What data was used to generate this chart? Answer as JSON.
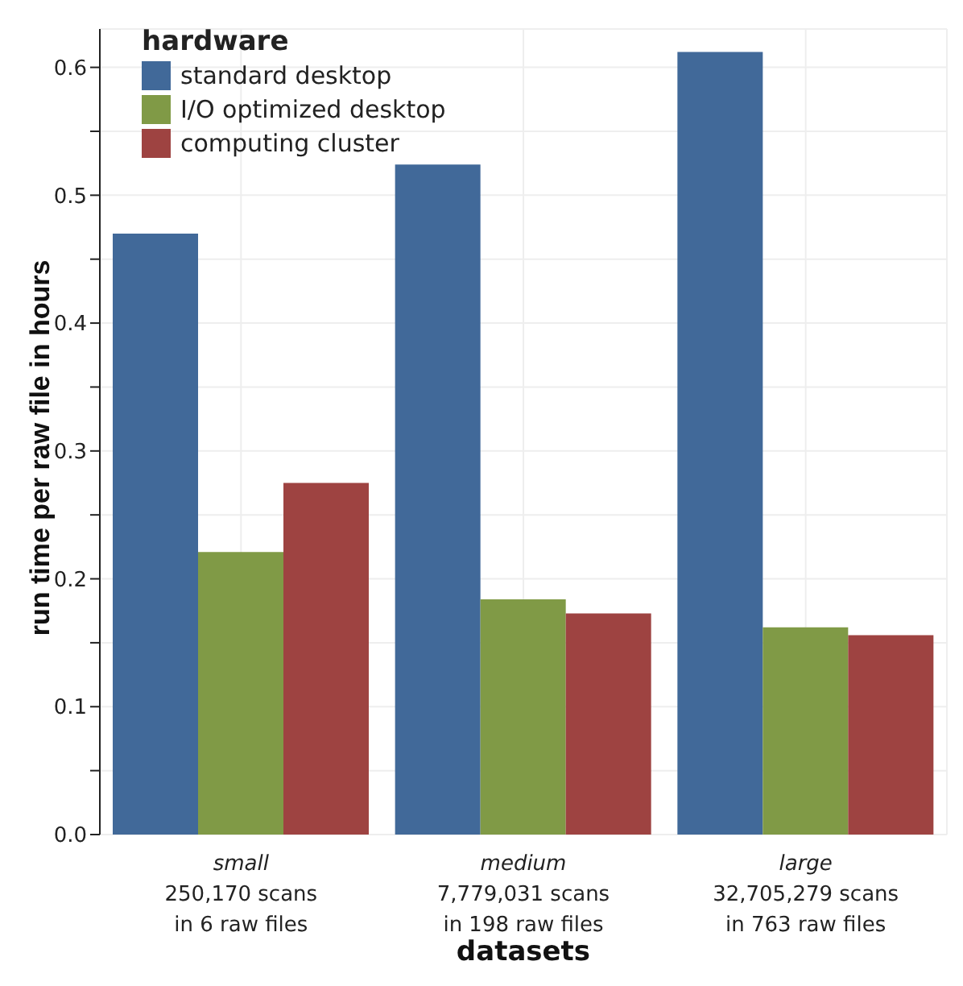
{
  "chart_data": {
    "type": "bar",
    "xlabel": "datasets",
    "ylabel": "run time per raw file in hours",
    "legend_title": "hardware",
    "legend": "top left",
    "grid": true,
    "categories": [
      "small\n250,170 scans\nin 6 raw files",
      "medium\n7,779,031 scans\nin 198 raw files",
      "large\n32,705,279 scans\nin 763 raw files"
    ],
    "series": [
      {
        "name": "standard desktop",
        "color": "#416999",
        "values": [
          0.47,
          0.524,
          0.612
        ]
      },
      {
        "name": "I/O optimized desktop",
        "color": "#809a46",
        "values": [
          0.221,
          0.184,
          0.162
        ]
      },
      {
        "name": "computing cluster",
        "color": "#9e4341",
        "values": [
          0.275,
          0.173,
          0.156
        ]
      }
    ],
    "ylim": [
      0,
      0.63
    ],
    "yticks": [
      {
        "value": 0,
        "label": "0.0"
      },
      {
        "value": 0.05,
        "label": null
      },
      {
        "value": 0.1,
        "label": "0.1"
      },
      {
        "value": 0.15,
        "label": null
      },
      {
        "value": 0.2,
        "label": "0.2"
      },
      {
        "value": 0.25,
        "label": null
      },
      {
        "value": 0.3,
        "label": "0.3"
      },
      {
        "value": 0.35,
        "label": null
      },
      {
        "value": 0.4,
        "label": "0.4"
      },
      {
        "value": 0.45,
        "label": null
      },
      {
        "value": 0.5,
        "label": "0.5"
      },
      {
        "value": 0.55,
        "label": null
      },
      {
        "value": 0.6,
        "label": "0.6"
      }
    ]
  }
}
